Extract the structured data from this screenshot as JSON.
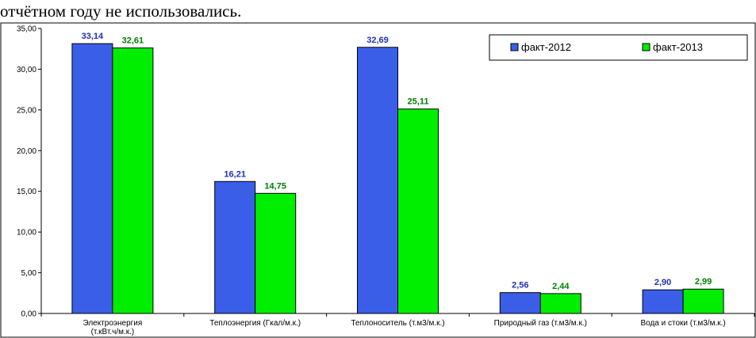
{
  "page": {
    "heading": "отчётном году не использовались."
  },
  "chart_data": {
    "type": "bar",
    "title": "",
    "xlabel": "",
    "ylabel": "",
    "ylim": [
      0,
      35
    ],
    "ytick_step": 5,
    "ytick_labels": [
      "0,00",
      "5,00",
      "10,00",
      "15,00",
      "20,00",
      "25,00",
      "30,00",
      "35,00"
    ],
    "categories": [
      [
        "Электроэнергия",
        "(т.кВт.ч/м.к.)"
      ],
      [
        "Теплоэнергия (Гкал/м.к.)"
      ],
      [
        "Теплоноситель (т.м3/м.к.)"
      ],
      [
        "Природный газ (т.м3/м.к.)"
      ],
      [
        "Вода и стоки (т.м3/м.к.)"
      ]
    ],
    "series": [
      {
        "name": "факт-2012",
        "color": "#3a5ee8",
        "label_color": "#1f2fbf",
        "values": [
          33.14,
          16.21,
          32.69,
          2.56,
          2.9
        ],
        "labels": [
          "33,14",
          "16,21",
          "32,69",
          "2,56",
          "2,90"
        ]
      },
      {
        "name": "факт-2013",
        "color": "#00ee00",
        "label_color": "#008000",
        "values": [
          32.61,
          14.75,
          25.11,
          2.44,
          2.99
        ],
        "labels": [
          "32,61",
          "14,75",
          "25,11",
          "2,44",
          "2,99"
        ]
      }
    ],
    "grid": false,
    "legend_position": "top-right"
  }
}
